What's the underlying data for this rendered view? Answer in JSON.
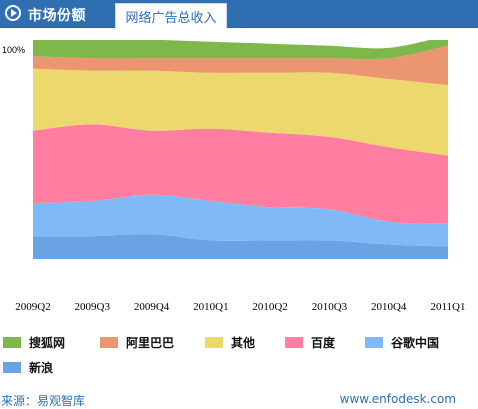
{
  "header": {
    "title": "市场份额",
    "active_tab": "网络广告总收入"
  },
  "chart_data": {
    "type": "area",
    "stacked": true,
    "normalized": true,
    "y_tick_label": "100%",
    "categories": [
      "2009Q2",
      "2009Q3",
      "2009Q4",
      "2010Q1",
      "2010Q2",
      "2010Q3",
      "2010Q4",
      "2011Q1"
    ],
    "series": [
      {
        "name": "新浪",
        "color": "#6aa3e4",
        "values": [
          11,
          11,
          12,
          9,
          9,
          9,
          7,
          6
        ]
      },
      {
        "name": "谷歌中国",
        "color": "#7fbaf7",
        "values": [
          16,
          17,
          19,
          19,
          16,
          15,
          11,
          11
        ]
      },
      {
        "name": "百度",
        "color": "#ff7ea2",
        "values": [
          35,
          37,
          31,
          35,
          36,
          35,
          36,
          33
        ]
      },
      {
        "name": "其他",
        "color": "#ecd86c",
        "values": [
          30,
          26,
          29,
          27,
          29,
          31,
          33,
          34
        ]
      },
      {
        "name": "阿里巴巴",
        "color": "#ec9671",
        "values": [
          6,
          6,
          6,
          7,
          7,
          7,
          10,
          19
        ]
      },
      {
        "name": "搜狐网",
        "color": "#7fb84a",
        "values": [
          10,
          10,
          9,
          8,
          7,
          6,
          5,
          5
        ]
      }
    ],
    "legend_order": [
      "搜狐网",
      "阿里巴巴",
      "其他",
      "百度",
      "谷歌中国",
      "新浪"
    ],
    "legend_position": "bottom"
  },
  "footer": {
    "source": "来源：易观智库",
    "site": "www.enfodesk.com"
  }
}
